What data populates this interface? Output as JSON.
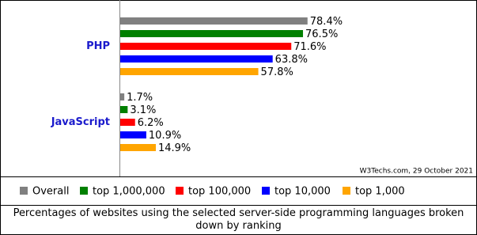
{
  "chart_data": {
    "type": "bar",
    "orientation": "horizontal",
    "categories": [
      "PHP",
      "JavaScript"
    ],
    "series": [
      {
        "name": "Overall",
        "color": "#808080",
        "values": [
          78.4,
          1.7
        ],
        "value_labels": [
          "78.4%",
          "1.7%"
        ]
      },
      {
        "name": "top 1,000,000",
        "color": "#008000",
        "values": [
          76.5,
          3.1
        ],
        "value_labels": [
          "76.5%",
          "3.1%"
        ]
      },
      {
        "name": "top 100,000",
        "color": "#ff0000",
        "values": [
          71.6,
          6.2
        ],
        "value_labels": [
          "71.6%",
          "6.2%"
        ]
      },
      {
        "name": "top 10,000",
        "color": "#0000ff",
        "values": [
          63.8,
          10.9
        ],
        "value_labels": [
          "63.8%",
          "10.9%"
        ]
      },
      {
        "name": "top 1,000",
        "color": "#ffa500",
        "values": [
          57.8,
          14.9
        ],
        "value_labels": [
          "57.8%",
          "14.9%"
        ]
      }
    ],
    "xlim": [
      0,
      100
    ],
    "source": "W3Techs.com, 29 October 2021",
    "caption": "Percentages of websites using the selected server-side programming languages broken down by ranking"
  }
}
